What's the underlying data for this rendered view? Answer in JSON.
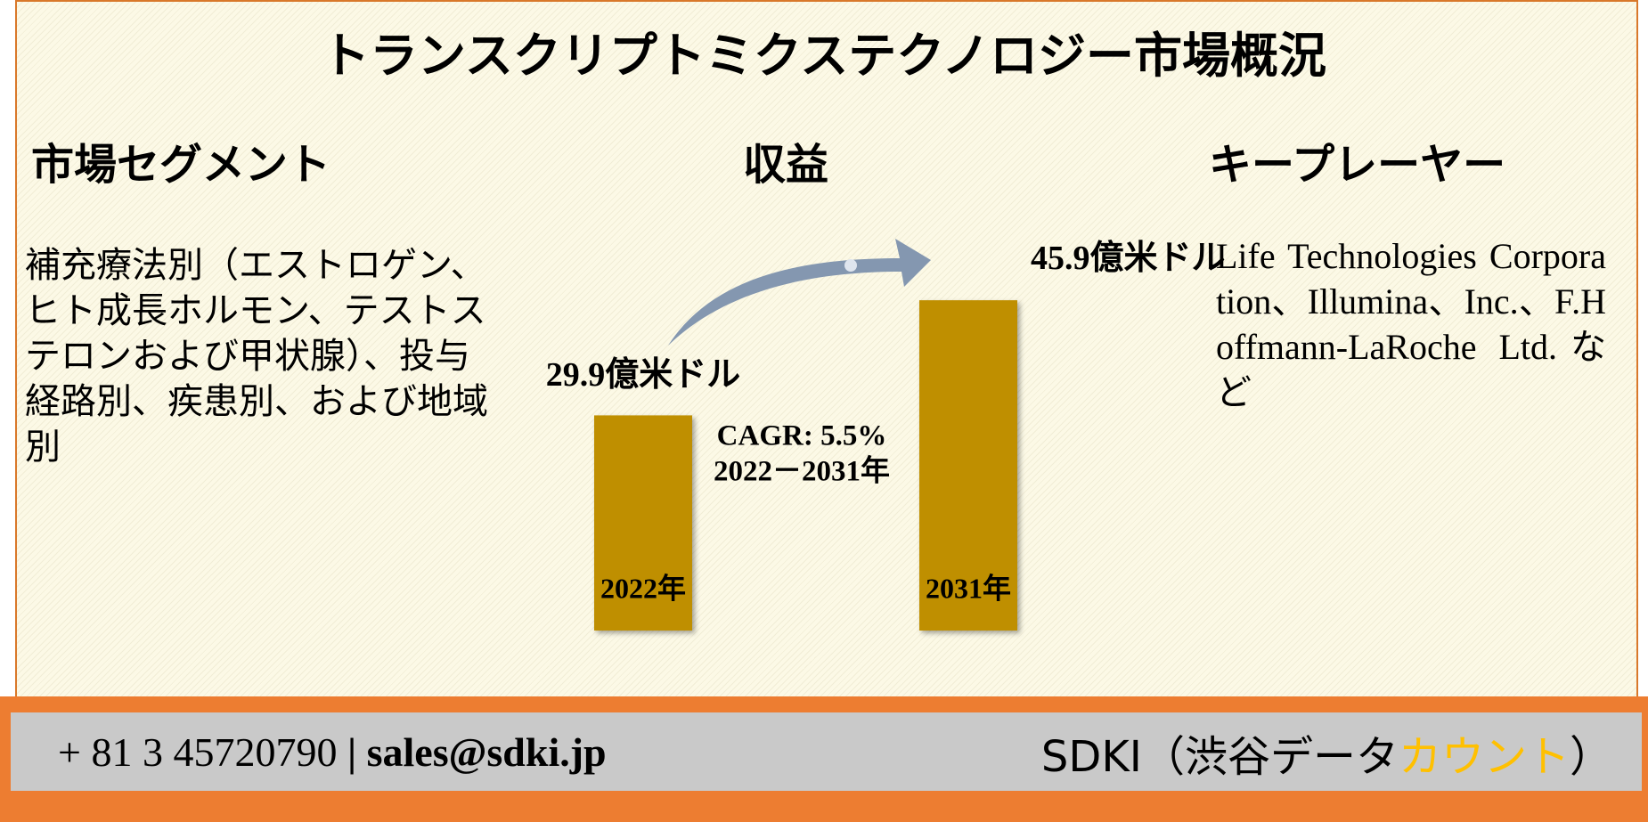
{
  "header": {
    "title": "トランスクリプトミクステクノロジー市場概況"
  },
  "segments": {
    "heading": "市場セグメント",
    "text": "補充療法別（エストロゲン、ヒト成長ホルモン、テストステロンおよび甲状腺）、投与経路別、疾患別、および地域別"
  },
  "revenue": {
    "heading": "収益",
    "cagr": "CAGR: 5.5%",
    "period": "2022－2031年"
  },
  "chart_data": {
    "type": "bar",
    "categories": [
      "2022年",
      "2031年"
    ],
    "values": [
      29.9,
      45.9
    ],
    "value_labels": [
      "29.9億米ドル",
      "45.9億米ドル"
    ],
    "color": "#bf8f00"
  },
  "players": {
    "heading": "キープレーヤー",
    "text": "Life Technologies Corporation、Illumina、Inc.、F.Hoffmann-LaRoche Ltd.など"
  },
  "footer": {
    "phone": "+ 81 3 45720790",
    "separator": "|",
    "email": "sales@sdki.jp",
    "brand": "SDKI（渋谷データ",
    "brand_highlight": "カウント",
    "brand_close": "）"
  }
}
